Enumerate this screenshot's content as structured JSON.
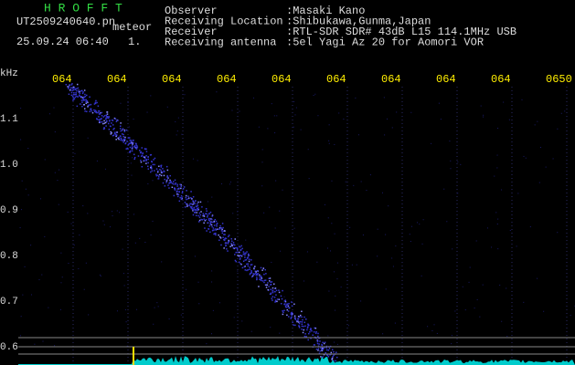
{
  "header": {
    "title": "H R O F F T",
    "filename": "UT2509240640.pn",
    "tag": "meteor",
    "datetime": "25.09.24 06:40",
    "count": "1."
  },
  "station": {
    "rows": [
      {
        "label": "Observer",
        "value": ":Masaki Kano"
      },
      {
        "label": "Receiving Location",
        "value": ":Shibukawa,Gunma,Japan"
      },
      {
        "label": "Receiver",
        "value": ":RTL-SDR SDR# 43dB L15 114.1MHz USB"
      },
      {
        "label": "Receiving antenna",
        "value": ":5el Yagi Az 20 for Aomori VOR"
      }
    ]
  },
  "axis": {
    "unit": "kHz",
    "x_labels": [
      "064",
      "064",
      "064",
      "064",
      "064",
      "064",
      "064",
      "064",
      "064",
      "0650"
    ],
    "y_labels": [
      "1.1",
      "1.0",
      "0.9",
      "0.8",
      "0.7",
      "0.6"
    ]
  }
}
